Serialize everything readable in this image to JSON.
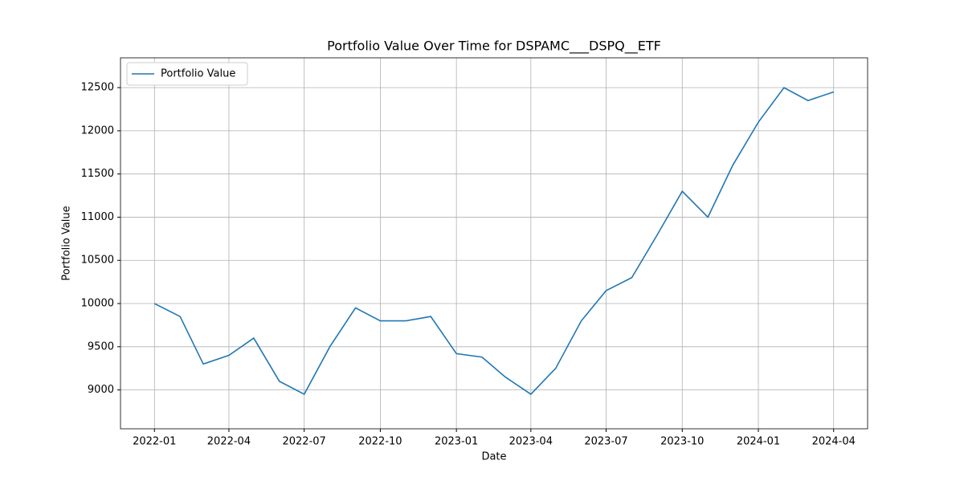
{
  "chart_data": {
    "type": "line",
    "title": "Portfolio Value Over Time for DSPAMC___DSPQ__ETF",
    "x_label": "Date",
    "y_label": "Portfolio Value",
    "x": [
      "2022-01",
      "2022-02",
      "2022-03",
      "2022-04",
      "2022-05",
      "2022-06",
      "2022-07",
      "2022-08",
      "2022-09",
      "2022-10",
      "2022-11",
      "2022-12",
      "2023-01",
      "2023-02",
      "2023-03",
      "2023-04",
      "2023-05",
      "2023-06",
      "2023-07",
      "2023-08",
      "2023-09",
      "2023-10",
      "2023-11",
      "2023-12",
      "2024-01",
      "2024-02",
      "2024-03",
      "2024-04"
    ],
    "series": [
      {
        "name": "Portfolio Value",
        "color": "#1f77b4",
        "values": [
          10000,
          9850,
          9300,
          9400,
          9600,
          9100,
          8950,
          9500,
          9950,
          9800,
          9800,
          9850,
          9420,
          9380,
          9150,
          8950,
          9250,
          9800,
          10150,
          10300,
          10800,
          11300,
          11000,
          11600,
          12100,
          12500,
          12350,
          12450
        ]
      }
    ],
    "xticks": [
      "2022-01",
      "2022-04",
      "2022-07",
      "2022-10",
      "2023-01",
      "2023-04",
      "2023-07",
      "2023-10",
      "2024-01",
      "2024-04"
    ],
    "ylim": [
      8550,
      12845
    ],
    "yticks": [
      9000,
      9500,
      10000,
      10500,
      11000,
      11500,
      12000,
      12500
    ],
    "grid": true,
    "legend": "upper left"
  }
}
